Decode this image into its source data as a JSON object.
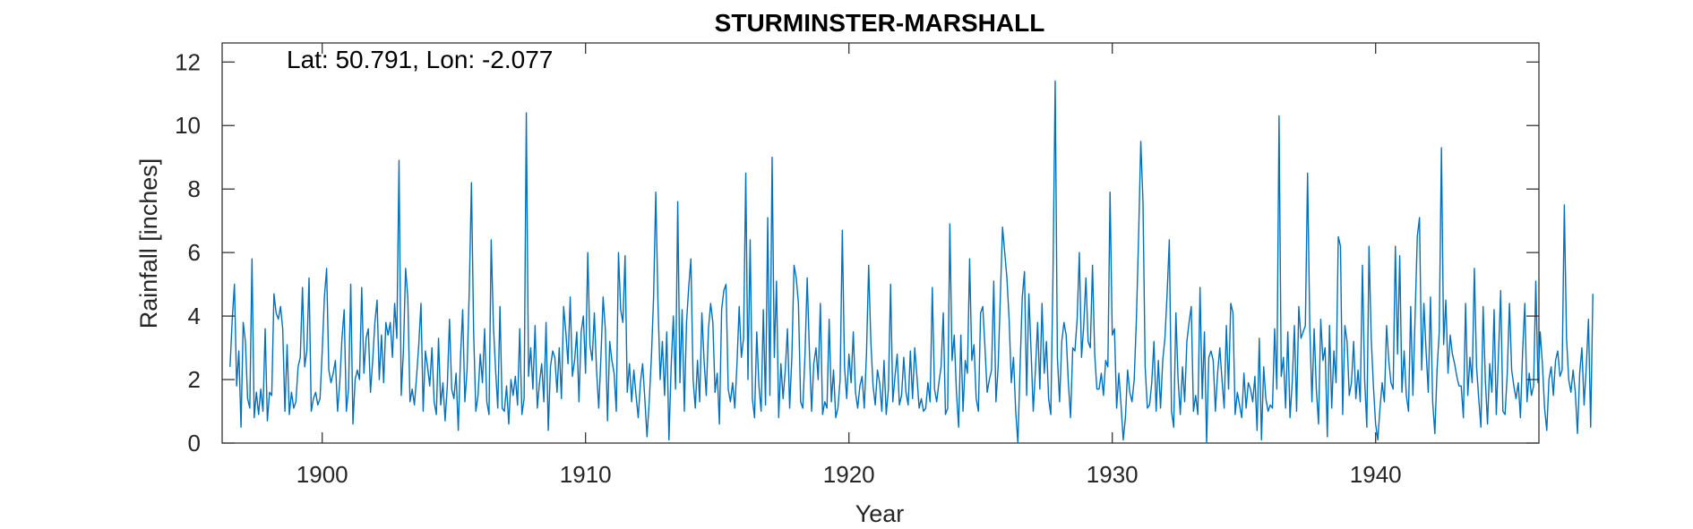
{
  "chart_data": {
    "type": "line",
    "title": "STURMINSTER-MARSHALL",
    "annotation": "Lat: 50.791, Lon: -2.077",
    "xlabel": "Year",
    "ylabel": "Rainfall [inches]",
    "xlim": [
      1896.2,
      1946.2
    ],
    "ylim": [
      0,
      12.6
    ],
    "x_ticks": [
      1900,
      1910,
      1920,
      1930,
      1940
    ],
    "x_tick_labels": [
      "1900",
      "1910",
      "1920",
      "1930",
      "1940"
    ],
    "y_ticks": [
      0,
      2,
      4,
      6,
      8,
      10,
      12
    ],
    "y_tick_labels": [
      "0",
      "2",
      "4",
      "6",
      "8",
      "10",
      "12"
    ],
    "grid": false,
    "series": [
      {
        "color": "#0072BD",
        "x_start": 1896.5,
        "x_step": 0.08333,
        "values": [
          2.4,
          3.9,
          5.0,
          1.8,
          2.9,
          0.5,
          3.8,
          3.2,
          1.4,
          1.1,
          5.8,
          0.8,
          1.6,
          0.9,
          1.7,
          1.0,
          3.6,
          0.7,
          1.6,
          1.5,
          4.7,
          4.1,
          3.9,
          4.3,
          3.6,
          1.0,
          3.1,
          0.9,
          1.6,
          1.1,
          1.3,
          2.4,
          2.7,
          4.9,
          2.4,
          2.9,
          5.2,
          1.0,
          1.4,
          1.6,
          1.2,
          1.4,
          2.9,
          4.6,
          5.5,
          2.3,
          1.9,
          2.2,
          2.6,
          1.0,
          1.9,
          3.3,
          4.2,
          1.0,
          1.7,
          5.0,
          0.6,
          2.0,
          2.3,
          2.0,
          4.9,
          2.2,
          3.3,
          3.6,
          1.6,
          2.6,
          3.8,
          4.5,
          2.0,
          3.4,
          1.9,
          3.8,
          3.4,
          3.8,
          2.7,
          4.4,
          3.3,
          8.9,
          1.5,
          2.9,
          5.5,
          4.6,
          1.3,
          1.7,
          1.2,
          2.1,
          3.1,
          4.4,
          1.0,
          2.9,
          2.4,
          1.8,
          3.0,
          1.3,
          0.9,
          3.3,
          1.2,
          1.9,
          0.7,
          1.8,
          3.9,
          1.7,
          1.4,
          2.2,
          0.4,
          2.7,
          4.2,
          1.3,
          2.3,
          4.8,
          8.2,
          3.5,
          1.0,
          1.5,
          2.8,
          1.9,
          3.6,
          1.3,
          0.9,
          6.4,
          3.7,
          2.3,
          1.1,
          4.3,
          1.1,
          1.0,
          1.8,
          0.6,
          2.0,
          1.5,
          2.1,
          1.2,
          3.6,
          0.9,
          1.4,
          10.4,
          2.1,
          3.0,
          1.7,
          3.7,
          1.1,
          1.9,
          2.5,
          1.3,
          3.8,
          0.4,
          2.4,
          2.9,
          2.7,
          1.6,
          3.0,
          1.4,
          4.3,
          3.5,
          2.5,
          4.6,
          2.1,
          2.6,
          3.5,
          1.3,
          3.5,
          4.0,
          2.2,
          6.0,
          3.1,
          2.6,
          4.1,
          2.3,
          1.1,
          2.7,
          4.6,
          3.6,
          0.7,
          3.2,
          2.6,
          2.2,
          1.0,
          6.0,
          4.2,
          3.8,
          5.9,
          1.6,
          2.5,
          1.3,
          2.3,
          1.5,
          0.8,
          1.9,
          2.5,
          1.4,
          0.2,
          1.3,
          2.7,
          4.6,
          7.9,
          4.4,
          2.0,
          3.2,
          1.5,
          3.5,
          0.1,
          2.4,
          4.0,
          1.7,
          7.6,
          1.9,
          4.2,
          1.0,
          3.8,
          4.9,
          5.8,
          2.0,
          1.1,
          2.6,
          1.3,
          4.1,
          2.6,
          1.5,
          3.6,
          4.4,
          3.8,
          1.6,
          2.2,
          0.6,
          4.2,
          4.8,
          5.0,
          1.7,
          1.3,
          1.9,
          1.1,
          2.5,
          4.3,
          2.7,
          3.3,
          8.5,
          2.0,
          6.4,
          1.4,
          0.8,
          3.5,
          1.8,
          1.0,
          4.2,
          1.2,
          7.1,
          1.5,
          9.0,
          2.7,
          5.1,
          0.8,
          2.5,
          1.4,
          2.3,
          3.6,
          1.1,
          2.7,
          5.6,
          5.2,
          4.4,
          1.3,
          1.1,
          2.8,
          5.2,
          2.9,
          1.0,
          2.5,
          3.0,
          2.0,
          4.4,
          0.9,
          1.3,
          1.1,
          3.9,
          1.3,
          2.3,
          0.8,
          1.1,
          2.0,
          6.7,
          2.4,
          1.4,
          2.8,
          1.9,
          3.5,
          1.6,
          1.1,
          1.8,
          2.1,
          1.1,
          2.8,
          5.6,
          3.2,
          1.8,
          1.2,
          2.3,
          1.9,
          1.0,
          2.6,
          0.9,
          1.7,
          5.0,
          1.3,
          2.1,
          2.8,
          1.2,
          1.5,
          2.7,
          1.6,
          1.2,
          2.9,
          1.4,
          3.0,
          2.1,
          1.1,
          1.4,
          1.0,
          1.1,
          1.9,
          1.3,
          4.9,
          1.7,
          1.3,
          1.9,
          2.4,
          4.1,
          0.9,
          1.1,
          6.9,
          2.6,
          3.4,
          1.6,
          0.5,
          3.4,
          1.0,
          2.6,
          2.2,
          5.8,
          2.6,
          3.1,
          1.4,
          1.0,
          4.1,
          4.3,
          3.0,
          1.6,
          2.0,
          2.3,
          5.1,
          1.3,
          2.4,
          4.6,
          6.8,
          6.0,
          5.2,
          3.9,
          1.9,
          2.7,
          1.0,
          0.0,
          2.4,
          4.6,
          5.4,
          1.5,
          4.7,
          2.9,
          1.0,
          2.3,
          3.8,
          1.7,
          4.4,
          2.2,
          3.2,
          1.4,
          0.9,
          5.3,
          11.4,
          2.7,
          1.3,
          3.2,
          3.8,
          3.4,
          1.9,
          0.8,
          3.0,
          2.9,
          3.9,
          6.0,
          2.7,
          3.7,
          5.2,
          3.2,
          3.0,
          5.6,
          2.8,
          1.7,
          1.7,
          2.2,
          1.5,
          2.6,
          2.4,
          7.9,
          3.4,
          3.6,
          1.1,
          2.2,
          1.2,
          0.1,
          0.8,
          2.3,
          1.6,
          1.3,
          2.0,
          3.9,
          6.5,
          9.5,
          7.6,
          2.4,
          1.1,
          1.2,
          1.9,
          3.2,
          1.0,
          2.6,
          1.1,
          2.6,
          3.3,
          4.7,
          6.4,
          1.0,
          0.5,
          4.1,
          2.0,
          0.9,
          2.4,
          1.3,
          3.2,
          3.8,
          4.3,
          1.0,
          1.5,
          0.9,
          4.9,
          1.4,
          3.5,
          0.0,
          2.7,
          2.9,
          2.6,
          1.0,
          2.2,
          3.0,
          2.0,
          1.1,
          3.7,
          1.7,
          4.4,
          4.1,
          0.9,
          1.6,
          1.2,
          0.8,
          2.2,
          1.1,
          1.9,
          1.7,
          1.3,
          2.1,
          0.4,
          3.3,
          0.1,
          2.4,
          1.4,
          1.0,
          1.2,
          1.1,
          3.6,
          1.7,
          10.3,
          2.1,
          2.7,
          1.1,
          3.5,
          0.8,
          1.9,
          3.7,
          1.0,
          4.3,
          3.3,
          3.5,
          3.7,
          8.5,
          3.7,
          1.3,
          3.6,
          1.7,
          0.6,
          3.9,
          2.6,
          3.0,
          0.2,
          3.7,
          1.1,
          2.9,
          1.9,
          6.5,
          6.2,
          0.9,
          3.7,
          3.2,
          1.5,
          1.9,
          3.2,
          1.4,
          2.3,
          1.3,
          5.6,
          2.0,
          0.5,
          6.2,
          3.3,
          1.8,
          0.6,
          0.1,
          1.1,
          1.9,
          1.3,
          3.7,
          2.6,
          1.9,
          1.7,
          6.2,
          2.8,
          5.9,
          1.6,
          2.9,
          1.5,
          1.0,
          4.3,
          1.5,
          4.0,
          6.5,
          7.1,
          2.3,
          4.4,
          2.9,
          1.6,
          4.6,
          1.3,
          0.3,
          2.3,
          3.5,
          9.3,
          3.1,
          4.5,
          2.2,
          3.4,
          2.8,
          2.5,
          2.1,
          1.8,
          1.8,
          0.8,
          4.4,
          1.5,
          2.7,
          1.9,
          5.5,
          2.4,
          1.4,
          0.5,
          4.3,
          2.0,
          0.6,
          2.5,
          1.6,
          4.2,
          0.9,
          2.8,
          4.8,
          1.0,
          0.9,
          2.2,
          4.4,
          2.3,
          1.8,
          1.4,
          1.9,
          0.8,
          2.9,
          4.4,
          1.3,
          2.2,
          1.5,
          1.8,
          5.1,
          1.9,
          3.5,
          2.5,
          1.1,
          0.4,
          2.0,
          2.4,
          1.5,
          2.6,
          2.9,
          2.1,
          2.3,
          7.5,
          3.3,
          2.0,
          1.6,
          2.3,
          1.6,
          0.3,
          2.2,
          3.0,
          1.2,
          2.4,
          3.9,
          0.5,
          4.7
        ]
      }
    ]
  }
}
